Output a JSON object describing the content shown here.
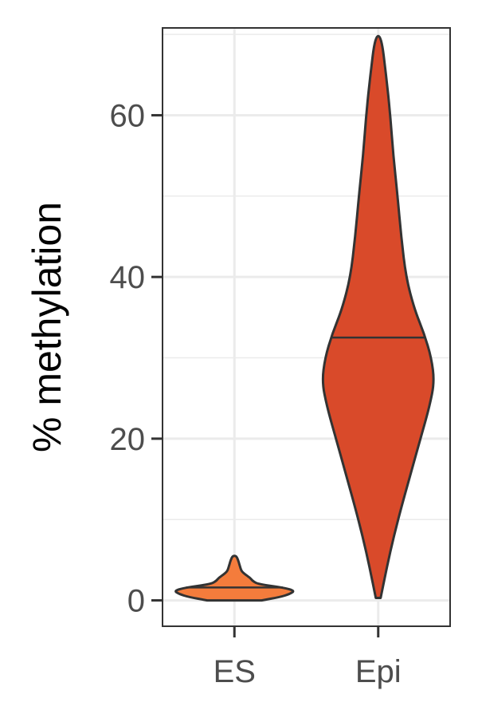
{
  "chart_data": {
    "type": "violin",
    "title": "",
    "xlabel": "",
    "ylabel": "% methylation",
    "ylim": [
      -3.2,
      70.8
    ],
    "y_ticks": [
      0,
      20,
      40,
      60
    ],
    "y_minor_ticks": [
      10,
      30,
      50,
      70
    ],
    "categories": [
      "ES",
      "Epi"
    ],
    "grid": true,
    "series": [
      {
        "category": "ES",
        "color": "#F47C3C",
        "min": 0,
        "max": 5.5,
        "median": 1.6,
        "density": [
          [
            0,
            0.45
          ],
          [
            0.4,
            0.75
          ],
          [
            0.8,
            0.92
          ],
          [
            1.2,
            1.0
          ],
          [
            1.6,
            0.8
          ],
          [
            2.0,
            0.4
          ],
          [
            2.4,
            0.3
          ],
          [
            2.8,
            0.26
          ],
          [
            3.2,
            0.18
          ],
          [
            3.6,
            0.12
          ],
          [
            4.0,
            0.1
          ],
          [
            4.5,
            0.08
          ],
          [
            5.0,
            0.06
          ],
          [
            5.5,
            0.03
          ]
        ]
      },
      {
        "category": "Epi",
        "color": "#D94A2A",
        "min": 0.3,
        "max": 69.8,
        "median": 32.5,
        "density": [
          [
            0.3,
            0.04
          ],
          [
            4,
            0.14
          ],
          [
            8,
            0.26
          ],
          [
            12,
            0.4
          ],
          [
            16,
            0.55
          ],
          [
            20,
            0.7
          ],
          [
            24,
            0.85
          ],
          [
            27,
            0.93
          ],
          [
            30,
            0.88
          ],
          [
            33,
            0.76
          ],
          [
            36,
            0.6
          ],
          [
            40,
            0.46
          ],
          [
            45,
            0.38
          ],
          [
            50,
            0.32
          ],
          [
            55,
            0.25
          ],
          [
            60,
            0.2
          ],
          [
            65,
            0.13
          ],
          [
            69.8,
            0.05
          ]
        ]
      }
    ]
  }
}
